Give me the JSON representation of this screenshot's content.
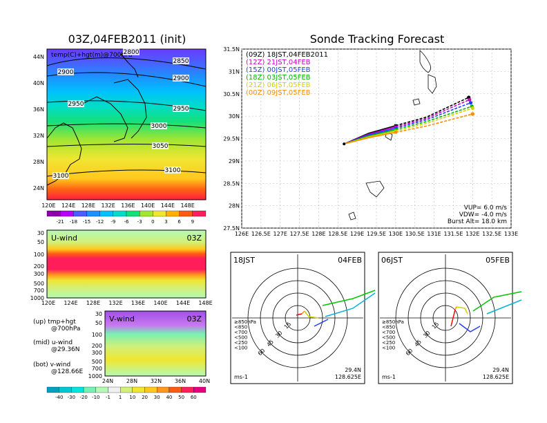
{
  "init_title": "03Z,04FEB2011 (init)",
  "forecast_title": "Sonde Tracking Forecast",
  "map_panel": {
    "label": "temp(C)+hgt(m)@700hPa",
    "x_ticks": [
      "120E",
      "124E",
      "128E",
      "132E",
      "136E",
      "140E",
      "144E",
      "148E"
    ],
    "y_ticks": [
      "24N",
      "28N",
      "32N",
      "36N",
      "40N",
      "44N"
    ],
    "contours": [
      "2800",
      "2850",
      "2900",
      "2900",
      "2950",
      "2950",
      "3000",
      "3050",
      "3100",
      "3100"
    ],
    "colorbar": [
      "-21",
      "-18",
      "-15",
      "-12",
      "-9",
      "-6",
      "-3",
      "0",
      "3",
      "6",
      "9"
    ],
    "colorbar_colors": [
      "#8b00a8",
      "#b400ff",
      "#4d5cff",
      "#1f8fff",
      "#00c0ff",
      "#00dcc8",
      "#14e07a",
      "#a0e632",
      "#f0e632",
      "#ffb000",
      "#ff5a14",
      "#ff1e5a"
    ]
  },
  "u_panel": {
    "label": "U-wind",
    "time": "03Z",
    "y_ticks": [
      "30",
      "50",
      "100",
      "200",
      "300",
      "500",
      "700",
      "1000"
    ],
    "x_ticks": [
      "120E",
      "124E",
      "128E",
      "132E",
      "136E",
      "140E",
      "144E",
      "148E"
    ]
  },
  "v_panel": {
    "label": "V-wind",
    "time": "03Z",
    "y_ticks": [
      "30",
      "50",
      "100",
      "200",
      "300",
      "500",
      "700",
      "1000"
    ],
    "x_ticks": [
      "24N",
      "28N",
      "32N",
      "36N",
      "40N"
    ]
  },
  "wind_colorbar": {
    "labels": [
      "-40",
      "-30",
      "-20",
      "-10",
      "-1",
      "1",
      "10",
      "20",
      "30",
      "40",
      "50",
      "60"
    ],
    "colors": [
      "#00a0c0",
      "#00c8d2",
      "#00e6dc",
      "#78f0b4",
      "#b4fab4",
      "#f0f0f0",
      "#d2f078",
      "#f0e632",
      "#ffc81e",
      "#ff961e",
      "#ff5a14",
      "#ff1e5a",
      "#e6007f"
    ]
  },
  "notes": [
    "(up) tmp+hgt",
    "@700hPa",
    "(mid) u-wind",
    "@29.36N",
    "(bot) v-wind",
    "@128.66E"
  ],
  "chart_data": [
    {
      "type": "line",
      "title": "Sonde Tracking Forecast",
      "x_ticks": [
        "126E",
        "126.5E",
        "127E",
        "127.5E",
        "128E",
        "128.5E",
        "129E",
        "129.5E",
        "130E",
        "130.5E",
        "131E",
        "131.5E",
        "132E",
        "132.5E",
        "133E"
      ],
      "y_ticks": [
        "27.5N",
        "28N",
        "28.5N",
        "29N",
        "29.5N",
        "30N",
        "30.5N",
        "31N",
        "31.5N"
      ],
      "xlim": [
        126,
        133
      ],
      "ylim": [
        27.5,
        31.5
      ],
      "series": [
        {
          "name": "(09Z) 18JST,04FEB2011",
          "color": "#000000",
          "points": [
            [
              128.66,
              29.38
            ],
            [
              129.3,
              29.62
            ],
            [
              130.0,
              29.79
            ],
            [
              130.8,
              29.98
            ],
            [
              131.9,
              30.42
            ]
          ]
        },
        {
          "name": "(12Z) 21JST,04FEB",
          "color": "#c800c8",
          "points": [
            [
              128.66,
              29.38
            ],
            [
              129.3,
              29.6
            ],
            [
              130.0,
              29.76
            ],
            [
              130.8,
              29.95
            ],
            [
              131.92,
              30.37
            ]
          ]
        },
        {
          "name": "(15Z) 00JST,05FEB",
          "color": "#1e3cff",
          "points": [
            [
              128.66,
              29.38
            ],
            [
              129.3,
              29.58
            ],
            [
              130.0,
              29.73
            ],
            [
              130.8,
              29.92
            ],
            [
              131.95,
              30.3
            ]
          ]
        },
        {
          "name": "(18Z) 03JST,05FEB",
          "color": "#00b400",
          "points": [
            [
              128.66,
              29.38
            ],
            [
              129.3,
              29.56
            ],
            [
              130.0,
              29.7
            ],
            [
              130.8,
              29.88
            ],
            [
              131.98,
              30.22
            ]
          ]
        },
        {
          "name": "(21Z) 06JST,05FEB",
          "color": "#d2d200",
          "points": [
            [
              128.66,
              29.38
            ],
            [
              129.3,
              29.54
            ],
            [
              130.0,
              29.67
            ],
            [
              130.8,
              29.84
            ],
            [
              132.0,
              30.18
            ]
          ]
        },
        {
          "name": "(00Z) 09JST,05FEB",
          "color": "#ff8c00",
          "points": [
            [
              128.66,
              29.38
            ],
            [
              129.3,
              29.52
            ],
            [
              130.0,
              29.64
            ],
            [
              130.8,
              29.78
            ],
            [
              132.0,
              30.05
            ]
          ]
        }
      ],
      "annotations": [
        "VUP= 6.0 m/s",
        "VDW= -4.0 m/s",
        "Burst Alt= 18.0 km"
      ]
    },
    {
      "type": "line",
      "title": "18JST 04FEB",
      "rings": [
        "15",
        "30",
        "45",
        "60"
      ],
      "units": "ms-1",
      "location": [
        "29.4N",
        "128.625E"
      ],
      "legend": [
        "≥850hPa",
        "<850",
        "<700",
        "<500",
        "<250",
        "<100"
      ],
      "legend_colors": [
        "#ff0000",
        "#ff8c00",
        "#d2d200",
        "#00c800",
        "#00b4d2",
        "#1e3cff"
      ]
    },
    {
      "type": "line",
      "title": "06JST 05FEB",
      "rings": [
        "15",
        "30",
        "45",
        "60"
      ],
      "units": "ms-1",
      "location": [
        "29.4N",
        "128.625E"
      ],
      "legend": [
        "≥850hPa",
        "<850",
        "<700",
        "<500",
        "<250",
        "<100"
      ],
      "legend_colors": [
        "#ff0000",
        "#ff8c00",
        "#d2d200",
        "#00c800",
        "#00b4d2",
        "#1e3cff"
      ]
    }
  ],
  "hodo_left": {
    "time": "18JST",
    "date": "04FEB"
  },
  "hodo_right": {
    "time": "06JST",
    "date": "05FEB"
  }
}
